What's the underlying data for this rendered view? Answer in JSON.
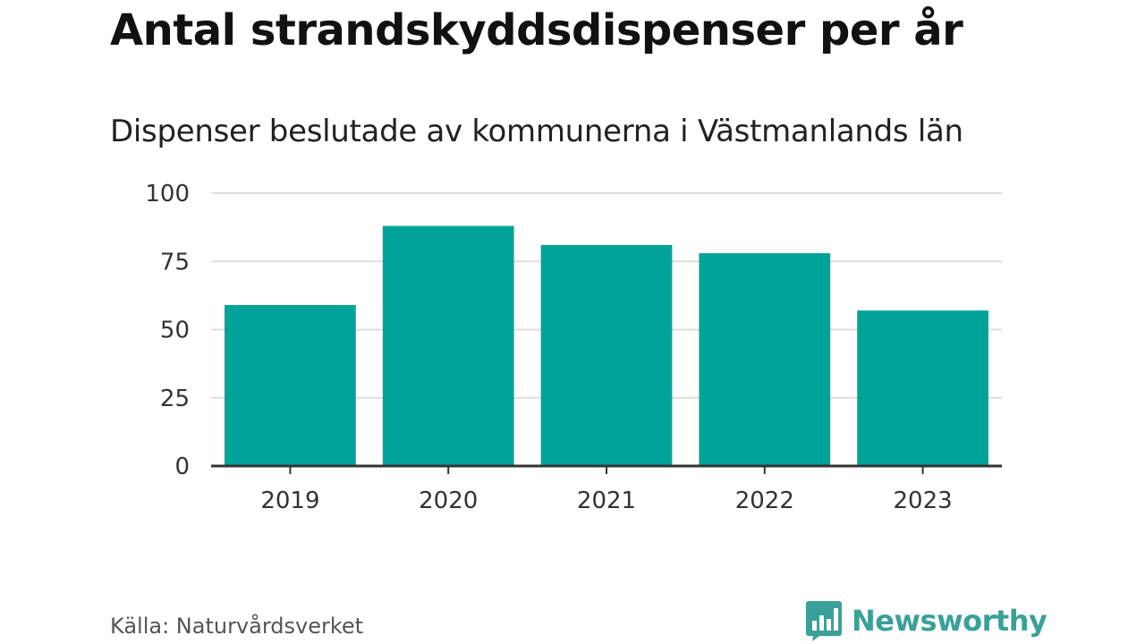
{
  "chart_data": {
    "type": "bar",
    "title": "Antal strandskyddsdispenser per år",
    "subtitle": "Dispenser beslutade av kommunerna i Västmanlands län",
    "categories": [
      "2019",
      "2020",
      "2021",
      "2022",
      "2023"
    ],
    "values": [
      59,
      88,
      81,
      78,
      57
    ],
    "ylim": [
      0,
      100
    ],
    "yticks": [
      0,
      25,
      50,
      75,
      100
    ],
    "xlabel": "",
    "ylabel": "",
    "grid": true,
    "bar_color": "#00a39a",
    "source": "Källa: Naturvårdsverket"
  },
  "brand": {
    "name": "Newsworthy",
    "icon": "newsworthy-logo-icon",
    "color": "#3aa198"
  }
}
